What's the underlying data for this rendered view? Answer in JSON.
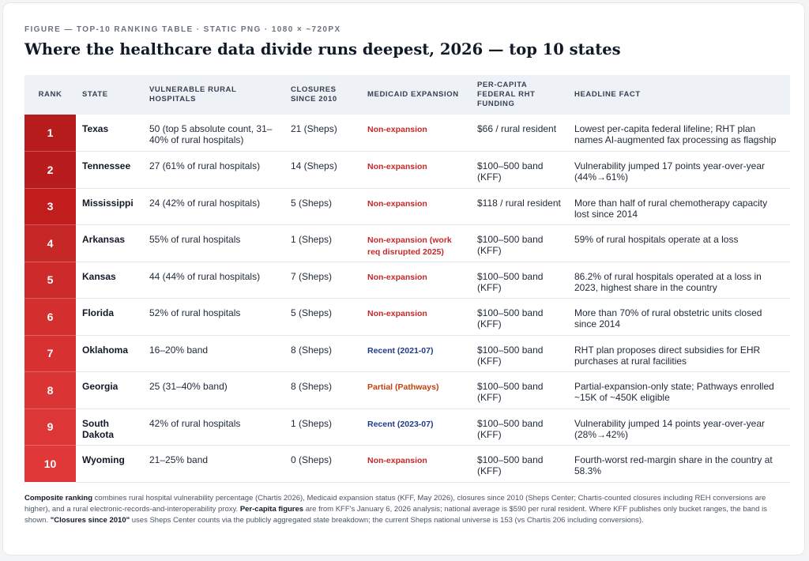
{
  "kicker": "FIGURE — TOP-10 RANKING TABLE · STATIC PNG · 1080 × ~720PX",
  "title": "Where the healthcare data divide runs deepest, 2026 — top 10 states",
  "columns": [
    "RANK",
    "STATE",
    "VULNERABLE RURAL HOSPITALS",
    "CLOSURES SINCE 2010",
    "MEDICAID EXPANSION",
    "PER-CAPITA FEDERAL RHT FUNDING",
    "HEADLINE FACT"
  ],
  "rank_colors": [
    "#b71c1c",
    "#b91c1c",
    "#c21d1d",
    "#c62828",
    "#cd2b2b",
    "#d32f2f",
    "#d73131",
    "#da3434",
    "#dd3636",
    "#e03838"
  ],
  "medicaid_colors": {
    "non": "#c62828",
    "recent": "#1e3a8a",
    "partial": "#c2410c"
  },
  "rows": [
    {
      "rank": "1",
      "state": "Texas",
      "vulnerable": "50 (top 5 absolute count, 31–40% of rural hospitals)",
      "closures": "21 (Sheps)",
      "medicaid": "Non-expansion",
      "medicaid_kind": "non",
      "funding": "$66 / rural resident",
      "fact": "Lowest per-capita federal lifeline; RHT plan names AI-augmented fax processing as flagship"
    },
    {
      "rank": "2",
      "state": "Tennessee",
      "vulnerable": "27 (61% of rural hospitals)",
      "closures": "14 (Sheps)",
      "medicaid": "Non-expansion",
      "medicaid_kind": "non",
      "funding": "$100–500 band (KFF)",
      "fact": "Vulnerability jumped 17 points year-over-year (44%→61%)"
    },
    {
      "rank": "3",
      "state": "Mississippi",
      "vulnerable": "24 (42% of rural hospitals)",
      "closures": "5 (Sheps)",
      "medicaid": "Non-expansion",
      "medicaid_kind": "non",
      "funding": "$118 / rural resident",
      "fact": "More than half of rural chemotherapy capacity lost since 2014"
    },
    {
      "rank": "4",
      "state": "Arkansas",
      "vulnerable": "55% of rural hospitals",
      "closures": "1 (Sheps)",
      "medicaid": "Non-expansion (work req disrupted 2025)",
      "medicaid_kind": "non",
      "funding": "$100–500 band (KFF)",
      "fact": "59% of rural hospitals operate at a loss"
    },
    {
      "rank": "5",
      "state": "Kansas",
      "vulnerable": "44 (44% of rural hospitals)",
      "closures": "7 (Sheps)",
      "medicaid": "Non-expansion",
      "medicaid_kind": "non",
      "funding": "$100–500 band (KFF)",
      "fact": "86.2% of rural hospitals operated at a loss in 2023, highest share in the country"
    },
    {
      "rank": "6",
      "state": "Florida",
      "vulnerable": "52% of rural hospitals",
      "closures": "5 (Sheps)",
      "medicaid": "Non-expansion",
      "medicaid_kind": "non",
      "funding": "$100–500 band (KFF)",
      "fact": "More than 70% of rural obstetric units closed since 2014"
    },
    {
      "rank": "7",
      "state": "Oklahoma",
      "vulnerable": "16–20% band",
      "closures": "8 (Sheps)",
      "medicaid": "Recent (2021-07)",
      "medicaid_kind": "recent",
      "funding": "$100–500 band (KFF)",
      "fact": "RHT plan proposes direct subsidies for EHR purchases at rural facilities"
    },
    {
      "rank": "8",
      "state": "Georgia",
      "vulnerable": "25 (31–40% band)",
      "closures": "8 (Sheps)",
      "medicaid": "Partial (Pathways)",
      "medicaid_kind": "partial",
      "funding": "$100–500 band (KFF)",
      "fact": "Partial-expansion-only state; Pathways enrolled ~15K of ~450K eligible"
    },
    {
      "rank": "9",
      "state": "South Dakota",
      "vulnerable": "42% of rural hospitals",
      "closures": "1 (Sheps)",
      "medicaid": "Recent (2023-07)",
      "medicaid_kind": "recent",
      "funding": "$100–500 band (KFF)",
      "fact": "Vulnerability jumped 14 points year-over-year (28%→42%)"
    },
    {
      "rank": "10",
      "state": "Wyoming",
      "vulnerable": "21–25% band",
      "closures": "0 (Sheps)",
      "medicaid": "Non-expansion",
      "medicaid_kind": "non",
      "funding": "$100–500 band (KFF)",
      "fact": "Fourth-worst red-margin share in the country at 58.3%"
    }
  ],
  "footnote": {
    "b1": "Composite ranking",
    "t1": " combines rural hospital vulnerability percentage (Chartis 2026), Medicaid expansion status (KFF, May 2026), closures since 2010 (Sheps Center; Chartis-counted closures including REH conversions are higher), and a rural electronic-records-and-interoperability proxy. ",
    "b2": "Per-capita figures",
    "t2": " are from KFF's January 6, 2026 analysis; national average is $590 per rural resident. Where KFF publishes only bucket ranges, the band is shown. ",
    "b3": "\"Closures since 2010\"",
    "t3": " uses Sheps Center counts via the publicly aggregated state breakdown; the current Sheps national universe is 153 (vs Chartis 206 including conversions)."
  }
}
